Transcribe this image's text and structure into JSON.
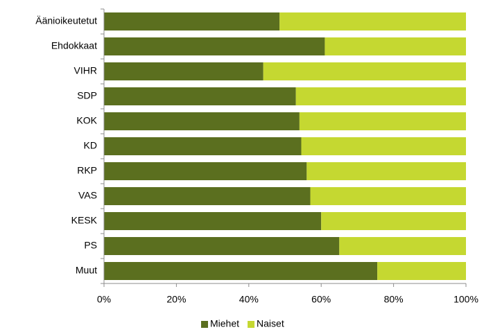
{
  "chart_data": {
    "type": "bar",
    "orientation": "horizontal",
    "stacked": true,
    "categories": [
      "Äänioikeutetut",
      "Ehdokkaat",
      "VIHR",
      "SDP",
      "KOK",
      "KD",
      "RKP",
      "VAS",
      "KESK",
      "PS",
      "Muut"
    ],
    "series": [
      {
        "name": "Miehet",
        "color": "#5b6f1f",
        "values": [
          48.5,
          61,
          44,
          53,
          54,
          54.5,
          56,
          57,
          60,
          65,
          75.5
        ]
      },
      {
        "name": "Naiset",
        "color": "#c5d831",
        "values": [
          51.5,
          39,
          56,
          47,
          46,
          45.5,
          44,
          43,
          40,
          35,
          24.5
        ]
      }
    ],
    "xlim": [
      0,
      100
    ],
    "xticks": [
      {
        "value": 0,
        "label": "0%"
      },
      {
        "value": 20,
        "label": "20%"
      },
      {
        "value": 40,
        "label": "40%"
      },
      {
        "value": 60,
        "label": "60%"
      },
      {
        "value": 80,
        "label": "80%"
      },
      {
        "value": 100,
        "label": "100%"
      }
    ],
    "grid": false,
    "legend": "bottom"
  }
}
